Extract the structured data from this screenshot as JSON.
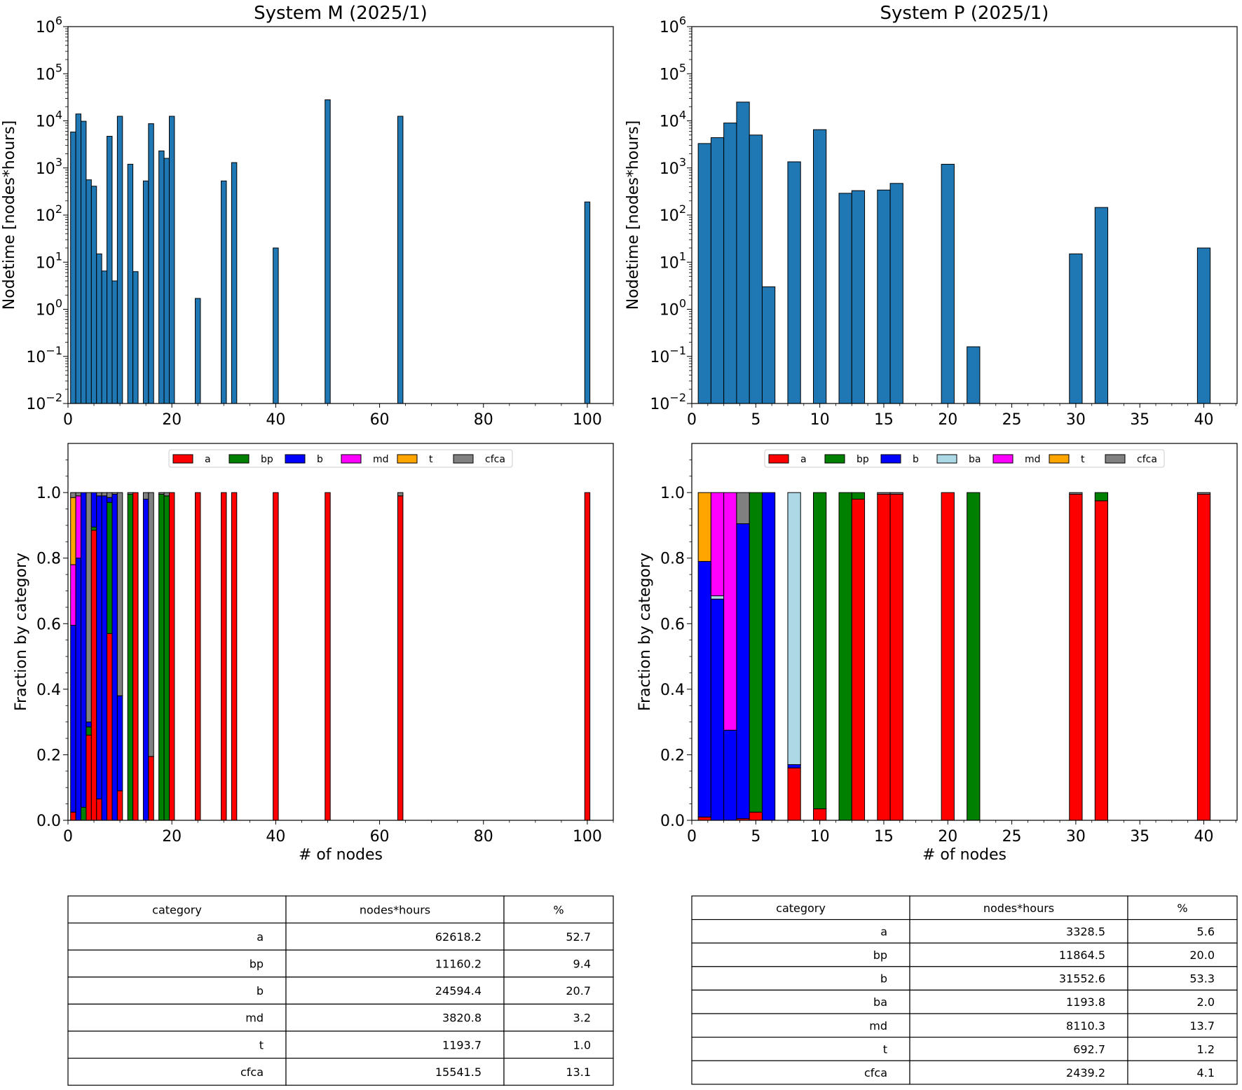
{
  "chart_data": [
    {
      "id": "M-hist",
      "type": "bar",
      "title": "System M (2025/1)",
      "ylabel": "Nodetime [nodes*hours]",
      "xlabel": "",
      "yscale": "log",
      "ylim": [
        0.01,
        1000000
      ],
      "xlim": [
        0,
        105
      ],
      "xticks": [
        0,
        20,
        40,
        60,
        80,
        100
      ],
      "yticks": [
        {
          "v": 0.01,
          "base": "10",
          "exp": "−2"
        },
        {
          "v": 0.1,
          "base": "10",
          "exp": "−1"
        },
        {
          "v": 1,
          "base": "10",
          "exp": "0"
        },
        {
          "v": 10,
          "base": "10",
          "exp": "1"
        },
        {
          "v": 100,
          "base": "10",
          "exp": "2"
        },
        {
          "v": 1000,
          "base": "10",
          "exp": "3"
        },
        {
          "v": 10000,
          "base": "10",
          "exp": "4"
        },
        {
          "v": 100000,
          "base": "10",
          "exp": "5"
        },
        {
          "v": 1000000,
          "base": "10",
          "exp": "6"
        }
      ],
      "bar_width": 1,
      "color": "#1f77b4",
      "x": [
        1,
        2,
        3,
        4,
        5,
        6,
        7,
        8,
        9,
        10,
        12,
        13,
        15,
        16,
        18,
        19,
        20,
        25,
        30,
        32,
        40,
        50,
        64,
        100
      ],
      "values": [
        5800,
        14000,
        9800,
        560,
        410,
        15,
        6.5,
        4700,
        4,
        12500,
        1200,
        6.3,
        530,
        8700,
        2300,
        1600,
        12500,
        1.7,
        530,
        1300,
        20,
        28000,
        12500,
        190
      ]
    },
    {
      "id": "P-hist",
      "type": "bar",
      "title": "System P (2025/1)",
      "ylabel": "Nodetime [nodes*hours]",
      "xlabel": "",
      "yscale": "log",
      "ylim": [
        0.01,
        1000000
      ],
      "xlim": [
        0,
        42.6
      ],
      "xticks": [
        0,
        5,
        10,
        15,
        20,
        25,
        30,
        35,
        40
      ],
      "yticks": [
        {
          "v": 0.01,
          "base": "10",
          "exp": "−2"
        },
        {
          "v": 0.1,
          "base": "10",
          "exp": "−1"
        },
        {
          "v": 1,
          "base": "10",
          "exp": "0"
        },
        {
          "v": 10,
          "base": "10",
          "exp": "1"
        },
        {
          "v": 100,
          "base": "10",
          "exp": "2"
        },
        {
          "v": 1000,
          "base": "10",
          "exp": "3"
        },
        {
          "v": 10000,
          "base": "10",
          "exp": "4"
        },
        {
          "v": 100000,
          "base": "10",
          "exp": "5"
        },
        {
          "v": 1000000,
          "base": "10",
          "exp": "6"
        }
      ],
      "bar_width": 1,
      "color": "#1f77b4",
      "x": [
        1,
        2,
        3,
        4,
        5,
        6,
        8,
        10,
        12,
        13,
        15,
        16,
        20,
        22,
        30,
        32,
        40
      ],
      "values": [
        3300,
        4400,
        9000,
        25000,
        5000,
        3,
        1350,
        6500,
        290,
        330,
        340,
        470,
        1200,
        0.16,
        15,
        145,
        20
      ]
    },
    {
      "id": "M-frac",
      "type": "bar",
      "stacked": true,
      "title": "",
      "ylabel": "Fraction by category",
      "xlabel": "# of nodes",
      "ylim": [
        0,
        1.15
      ],
      "xlim": [
        0,
        105
      ],
      "xticks": [
        0,
        20,
        40,
        60,
        80,
        100
      ],
      "yticks": [
        0.0,
        0.2,
        0.4,
        0.6,
        0.8,
        1.0
      ],
      "ytick_labels": [
        "0.0",
        "0.2",
        "0.4",
        "0.6",
        "0.8",
        "1.0"
      ],
      "bar_width": 1,
      "categories_legend": [
        "a",
        "bp",
        "b",
        "md",
        "t",
        "cfca"
      ],
      "colors": {
        "a": "#ff0000",
        "bp": "#008000",
        "b": "#0000ff",
        "ba": "#add8e6",
        "md": "#ff00ff",
        "t": "#ffa500",
        "cfca": "#808080"
      },
      "legend_position": "top-center",
      "x": [
        1,
        2,
        3,
        4,
        5,
        6,
        7,
        8,
        9,
        10,
        12,
        13,
        15,
        16,
        18,
        19,
        20,
        25,
        30,
        32,
        40,
        50,
        64,
        100
      ],
      "series": [
        {
          "name": "a",
          "values": [
            0.025,
            0,
            0,
            0.26,
            0.885,
            0.065,
            0,
            0.57,
            0,
            0.09,
            0,
            1.0,
            0,
            0.195,
            0,
            0,
            1.0,
            1.0,
            1.0,
            1.0,
            1.0,
            1.0,
            0.99,
            1.0
          ]
        },
        {
          "name": "bp",
          "values": [
            0,
            0,
            0.04,
            0.025,
            0.01,
            0,
            0,
            0.4,
            0,
            0,
            0.995,
            0,
            0,
            0,
            0.995,
            0.99,
            0,
            0,
            0,
            0,
            0,
            0,
            0,
            0
          ]
        },
        {
          "name": "b",
          "values": [
            0.57,
            0.8,
            0.96,
            0.015,
            0.105,
            0.925,
            0.99,
            0.015,
            0.995,
            0.29,
            0,
            0,
            0.98,
            0,
            0,
            0,
            0,
            0,
            0,
            0,
            0,
            0,
            0,
            0
          ]
        },
        {
          "name": "md",
          "values": [
            0.185,
            0.19,
            0,
            0,
            0,
            0,
            0,
            0,
            0,
            0,
            0,
            0,
            0,
            0,
            0,
            0,
            0,
            0,
            0,
            0,
            0,
            0,
            0,
            0
          ]
        },
        {
          "name": "t",
          "values": [
            0.205,
            0,
            0,
            0,
            0,
            0,
            0,
            0,
            0,
            0,
            0,
            0,
            0,
            0,
            0,
            0,
            0,
            0,
            0,
            0,
            0,
            0,
            0,
            0
          ]
        },
        {
          "name": "cfca",
          "values": [
            0.015,
            0.01,
            0,
            0.7,
            0,
            0.01,
            0.01,
            0.015,
            0.005,
            0.62,
            0.005,
            0,
            0.02,
            0.805,
            0.005,
            0.01,
            0,
            0,
            0,
            0,
            0,
            0,
            0.01,
            0
          ]
        }
      ]
    },
    {
      "id": "P-frac",
      "type": "bar",
      "stacked": true,
      "title": "",
      "ylabel": "Fraction by category",
      "xlabel": "# of nodes",
      "ylim": [
        0,
        1.15
      ],
      "xlim": [
        0,
        42.6
      ],
      "xticks": [
        0,
        5,
        10,
        15,
        20,
        25,
        30,
        35,
        40
      ],
      "yticks": [
        0.0,
        0.2,
        0.4,
        0.6,
        0.8,
        1.0
      ],
      "ytick_labels": [
        "0.0",
        "0.2",
        "0.4",
        "0.6",
        "0.8",
        "1.0"
      ],
      "bar_width": 1,
      "categories_legend": [
        "a",
        "bp",
        "b",
        "ba",
        "md",
        "t",
        "cfca"
      ],
      "colors": {
        "a": "#ff0000",
        "bp": "#008000",
        "b": "#0000ff",
        "ba": "#add8e6",
        "md": "#ff00ff",
        "t": "#ffa500",
        "cfca": "#808080"
      },
      "legend_position": "top-center",
      "x": [
        1,
        2,
        3,
        4,
        5,
        6,
        8,
        10,
        12,
        13,
        15,
        16,
        20,
        22,
        30,
        32,
        40
      ],
      "series": [
        {
          "name": "a",
          "values": [
            0.01,
            0,
            0,
            0.005,
            0.025,
            0,
            0.16,
            0.035,
            0,
            0.98,
            0.995,
            0.995,
            1.0,
            0,
            0.995,
            0.975,
            0.995
          ]
        },
        {
          "name": "bp",
          "values": [
            0,
            0,
            0,
            0,
            0.975,
            0,
            0,
            0.965,
            1.0,
            0.02,
            0,
            0,
            0,
            1.0,
            0,
            0.025,
            0
          ]
        },
        {
          "name": "b",
          "values": [
            0.78,
            0.675,
            0.275,
            0.9,
            0,
            1.0,
            0.01,
            0,
            0,
            0,
            0,
            0,
            0,
            0,
            0,
            0,
            0
          ]
        },
        {
          "name": "ba",
          "values": [
            0,
            0.01,
            0,
            0,
            0,
            0,
            0.83,
            0,
            0,
            0,
            0,
            0,
            0,
            0,
            0,
            0,
            0
          ]
        },
        {
          "name": "md",
          "values": [
            0,
            0.315,
            0.725,
            0,
            0,
            0,
            0,
            0,
            0,
            0,
            0,
            0,
            0,
            0,
            0,
            0,
            0
          ]
        },
        {
          "name": "t",
          "values": [
            0.21,
            0,
            0,
            0,
            0,
            0,
            0,
            0,
            0,
            0,
            0,
            0,
            0,
            0,
            0,
            0,
            0
          ]
        },
        {
          "name": "cfca",
          "values": [
            0,
            0,
            0,
            0.095,
            0,
            0,
            0,
            0,
            0,
            0,
            0.005,
            0.005,
            0,
            0,
            0.005,
            0,
            0.005
          ]
        }
      ]
    },
    {
      "id": "M-table",
      "type": "table",
      "columns": [
        "category",
        "nodes*hours",
        "%"
      ],
      "rows": [
        [
          "a",
          "62618.2",
          "52.7"
        ],
        [
          "bp",
          "11160.2",
          "9.4"
        ],
        [
          "b",
          "24594.4",
          "20.7"
        ],
        [
          "md",
          "3820.8",
          "3.2"
        ],
        [
          "t",
          "1193.7",
          "1.0"
        ],
        [
          "cfca",
          "15541.5",
          "13.1"
        ]
      ]
    },
    {
      "id": "P-table",
      "type": "table",
      "columns": [
        "category",
        "nodes*hours",
        "%"
      ],
      "rows": [
        [
          "a",
          "3328.5",
          "5.6"
        ],
        [
          "bp",
          "11864.5",
          "20.0"
        ],
        [
          "b",
          "31552.6",
          "53.3"
        ],
        [
          "ba",
          "1193.8",
          "2.0"
        ],
        [
          "md",
          "8110.3",
          "13.7"
        ],
        [
          "t",
          "692.7",
          "1.2"
        ],
        [
          "cfca",
          "2439.2",
          "4.1"
        ]
      ]
    }
  ]
}
